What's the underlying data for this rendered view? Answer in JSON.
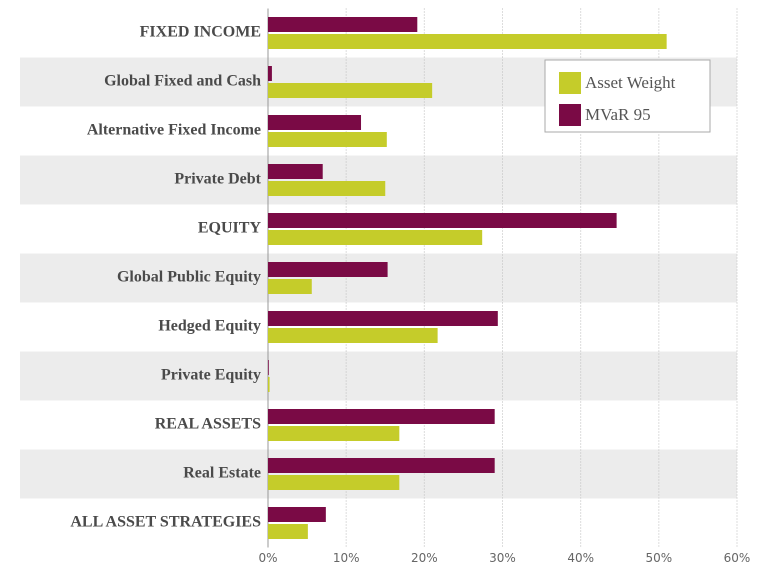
{
  "chart_data": {
    "type": "bar",
    "orientation": "horizontal",
    "categories": [
      "FIXED INCOME",
      "Global Fixed and Cash",
      "Alternative Fixed Income",
      "Private Debt",
      "EQUITY",
      "Global Public Equity",
      "Hedged Equity",
      "Private Equity",
      "REAL ASSETS",
      "Real Estate",
      "ALL ASSET STRATEGIES"
    ],
    "series": [
      {
        "name": "Asset Weight",
        "color": "#c5cc2a",
        "values": [
          51.0,
          21.0,
          15.2,
          15.0,
          27.4,
          5.6,
          21.7,
          0.2,
          16.8,
          16.8,
          5.1
        ]
      },
      {
        "name": "MVaR 95",
        "color": "#7a0a45",
        "values": [
          19.1,
          0.5,
          11.9,
          7.0,
          44.6,
          15.3,
          29.4,
          0.1,
          29.0,
          29.0,
          7.4
        ]
      }
    ],
    "xlim": [
      0,
      60
    ],
    "xticks": [
      {
        "value": 0,
        "label": "0%"
      },
      {
        "value": 10,
        "label": "10%"
      },
      {
        "value": 20,
        "label": "20%"
      },
      {
        "value": 30,
        "label": "30%"
      },
      {
        "value": 40,
        "label": "40%"
      },
      {
        "value": 50,
        "label": "50%"
      },
      {
        "value": 60,
        "label": "60%"
      }
    ],
    "grid": true,
    "legend": "upper right"
  }
}
